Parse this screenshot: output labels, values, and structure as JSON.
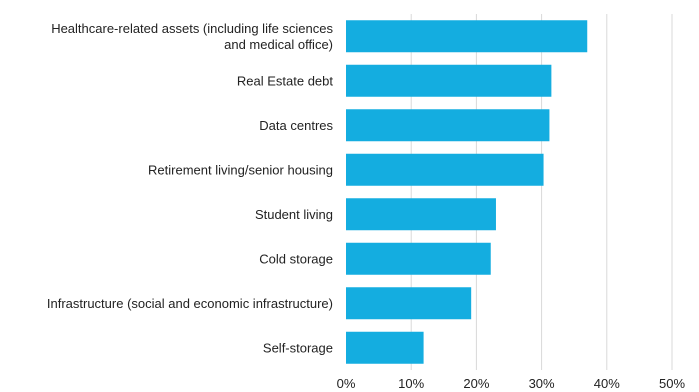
{
  "chart_data": {
    "type": "bar",
    "orientation": "horizontal",
    "title": "",
    "xlabel": "",
    "ylabel": "",
    "categories": [
      [
        "Healthcare-related assets (including life sciences",
        "and medical office)"
      ],
      [
        "Real Estate debt"
      ],
      [
        "Data centres"
      ],
      [
        "Retirement living/senior housing"
      ],
      [
        "Student living"
      ],
      [
        "Cold storage"
      ],
      [
        "Infrastructure (social and economic infrastructure)"
      ],
      [
        "Self-storage"
      ]
    ],
    "values": [
      37,
      31.5,
      31.2,
      30.3,
      23,
      22.2,
      19.2,
      11.9
    ],
    "xlim": [
      0,
      50
    ],
    "ticks": [
      "0%",
      "10%",
      "20%",
      "30%",
      "40%",
      "50%"
    ],
    "tick_values": [
      0,
      10,
      20,
      30,
      40,
      50
    ],
    "grid": "vertical",
    "legend": "none",
    "colors": {
      "bar": "#14ADE0",
      "grid": "#D9D9D9",
      "text": "#222222"
    }
  }
}
